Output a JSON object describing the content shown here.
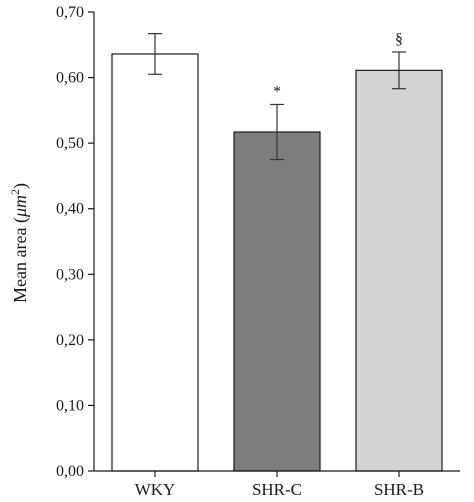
{
  "chart_data": {
    "type": "bar",
    "categories": [
      "WKY",
      "SHR-C",
      "SHR-B"
    ],
    "values": [
      0.636,
      0.517,
      0.611
    ],
    "errors": [
      0.031,
      0.042,
      0.028
    ],
    "annotations": [
      "",
      "*",
      "§"
    ],
    "bar_colors": [
      "#ffffff",
      "#7d7d80",
      "#d3d3d5"
    ],
    "ylabel_prefix": "Mean area (",
    "ylabel_unit": "μm",
    "ylabel_sup": "2",
    "ylabel_suffix": ")",
    "ylim": [
      0,
      0.7
    ],
    "yticks": [
      0,
      0.1,
      0.2,
      0.3,
      0.4,
      0.5,
      0.6,
      0.7
    ],
    "ytick_labels": [
      "0,00",
      "0,10",
      "0,20",
      "0,30",
      "0,40",
      "0,50",
      "0,60",
      "0,70"
    ],
    "grid": false
  }
}
